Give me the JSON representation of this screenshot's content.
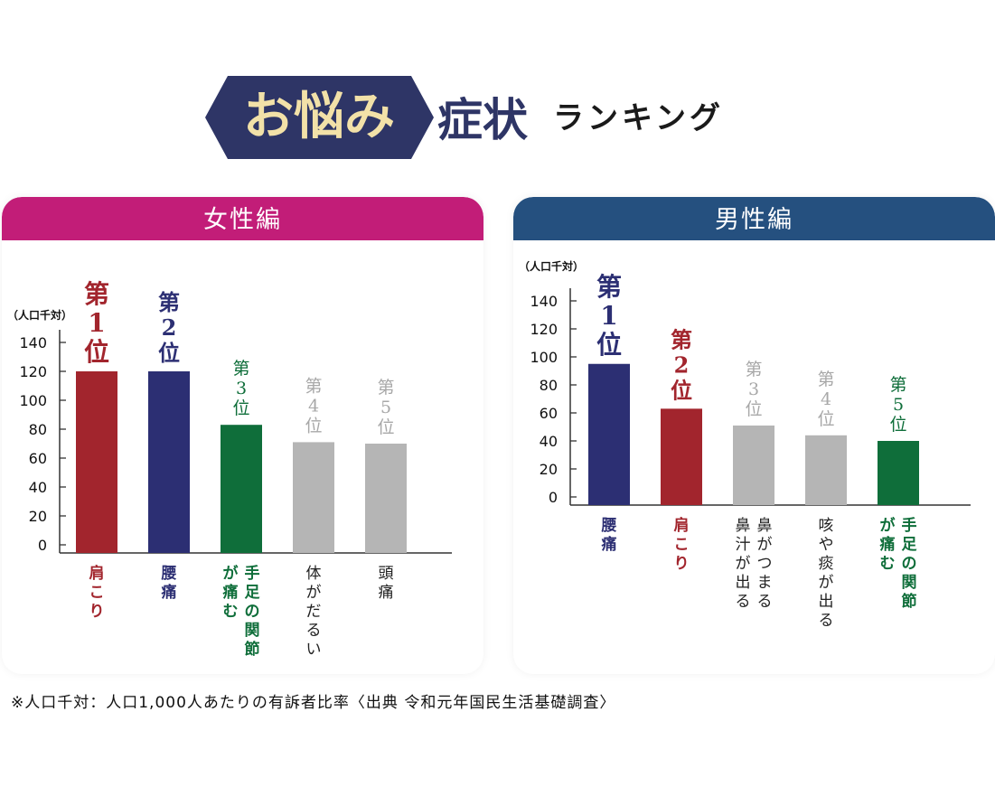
{
  "title": {
    "part1": "お悩み",
    "part2": "症状",
    "part3": "ランキング"
  },
  "colors": {
    "navy": "#2e3566",
    "female_header": "#c21d78",
    "male_header": "#25507f",
    "red": "#a2252d",
    "blue": "#2c2f73",
    "green": "#0f6e3a",
    "gray": "#b5b5b5",
    "title_gold": "#f2e1a8"
  },
  "footnote": "※人口千対：人口1,000人あたりの有訴者比率〈出典 令和元年国民生活基礎調査〉",
  "chart_data": [
    {
      "type": "bar",
      "title": "女性編",
      "ylabel": "（人口千対）",
      "ylim": [
        0,
        140
      ],
      "yticks": [
        0,
        20,
        40,
        60,
        80,
        100,
        120,
        140
      ],
      "categories": [
        "肩こり",
        "腰痛",
        "手足の関節が痛む",
        "体がだるい",
        "頭痛"
      ],
      "category_lines": [
        [
          "肩こり"
        ],
        [
          "腰痛"
        ],
        [
          "手足の関節",
          "が痛む"
        ],
        [
          "体がだるい"
        ],
        [
          "頭痛"
        ]
      ],
      "values": [
        120,
        120,
        83,
        71,
        70
      ],
      "ranks": [
        "第1位",
        "第2位",
        "第3位",
        "第4位",
        "第5位"
      ],
      "bar_colors": [
        "#a2252d",
        "#2c2f73",
        "#0f6e3a",
        "#b5b5b5",
        "#b5b5b5"
      ],
      "label_colors": [
        "#a2252d",
        "#2c2f73",
        "#0f6e3a",
        "#222222",
        "#222222"
      ],
      "grid": false
    },
    {
      "type": "bar",
      "title": "男性編",
      "ylabel": "（人口千対）",
      "ylim": [
        0,
        140
      ],
      "yticks": [
        0,
        20,
        40,
        60,
        80,
        100,
        120,
        140
      ],
      "categories": [
        "腰痛",
        "肩こり",
        "鼻がつまる鼻汁が出る",
        "咳や痰が出る",
        "手足の関節が痛む"
      ],
      "category_lines": [
        [
          "腰痛"
        ],
        [
          "肩こり"
        ],
        [
          "鼻がつまる",
          "鼻汁が出る"
        ],
        [
          "咳や痰が出る"
        ],
        [
          "手足の関節",
          "が痛む"
        ]
      ],
      "values": [
        95,
        63,
        51,
        44,
        40
      ],
      "ranks": [
        "第1位",
        "第2位",
        "第3位",
        "第4位",
        "第5位"
      ],
      "bar_colors": [
        "#2c2f73",
        "#a2252d",
        "#b5b5b5",
        "#b5b5b5",
        "#0f6e3a"
      ],
      "label_colors": [
        "#2c2f73",
        "#a2252d",
        "#222222",
        "#222222",
        "#0f6e3a"
      ],
      "grid": false
    }
  ]
}
